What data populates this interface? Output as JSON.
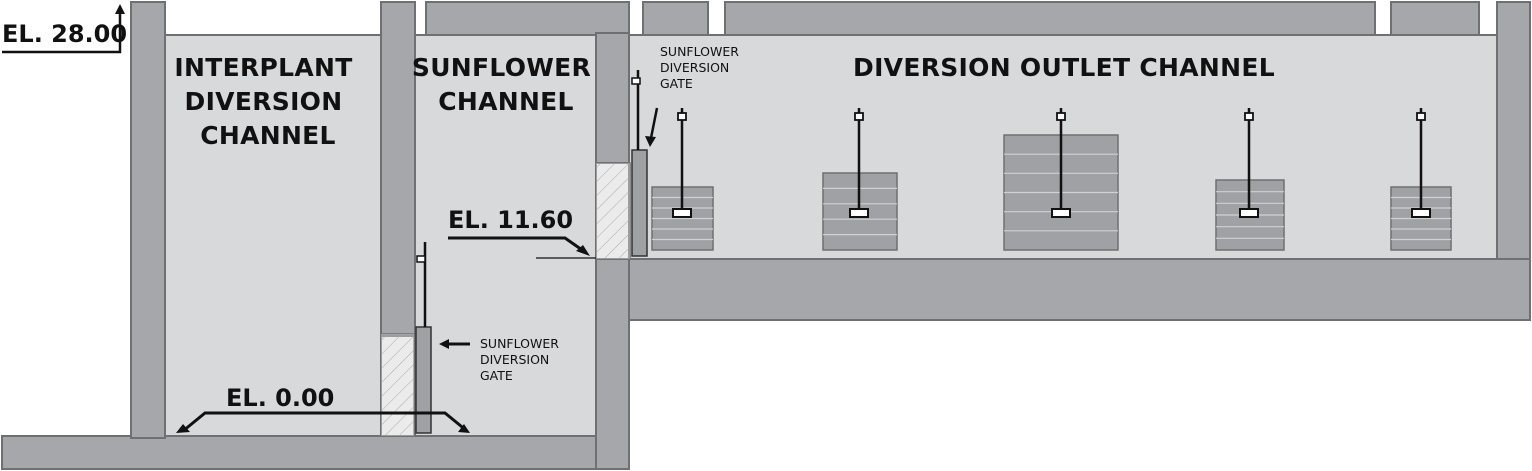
{
  "channels": {
    "interplant": [
      "INTERPLANT",
      "DIVERSION",
      "CHANNEL"
    ],
    "sunflower": [
      "SUNFLOWER",
      "CHANNEL"
    ],
    "outlet": "DIVERSION OUTLET CHANNEL"
  },
  "elevations": {
    "top": "EL. 28.00",
    "mid": "EL. 11.60",
    "bottom": "EL. 0.00"
  },
  "gates": {
    "upper": [
      "SUNFLOWER",
      "DIVERSION",
      "GATE"
    ],
    "lower": [
      "SUNFLOWER",
      "DIVERSION",
      "GATE"
    ]
  },
  "colors": {
    "wall": "#a6a7aa",
    "wall_stroke": "#6f7072",
    "water": "#d8d9db",
    "block": "#a0a1a4",
    "ink": "#111111"
  }
}
